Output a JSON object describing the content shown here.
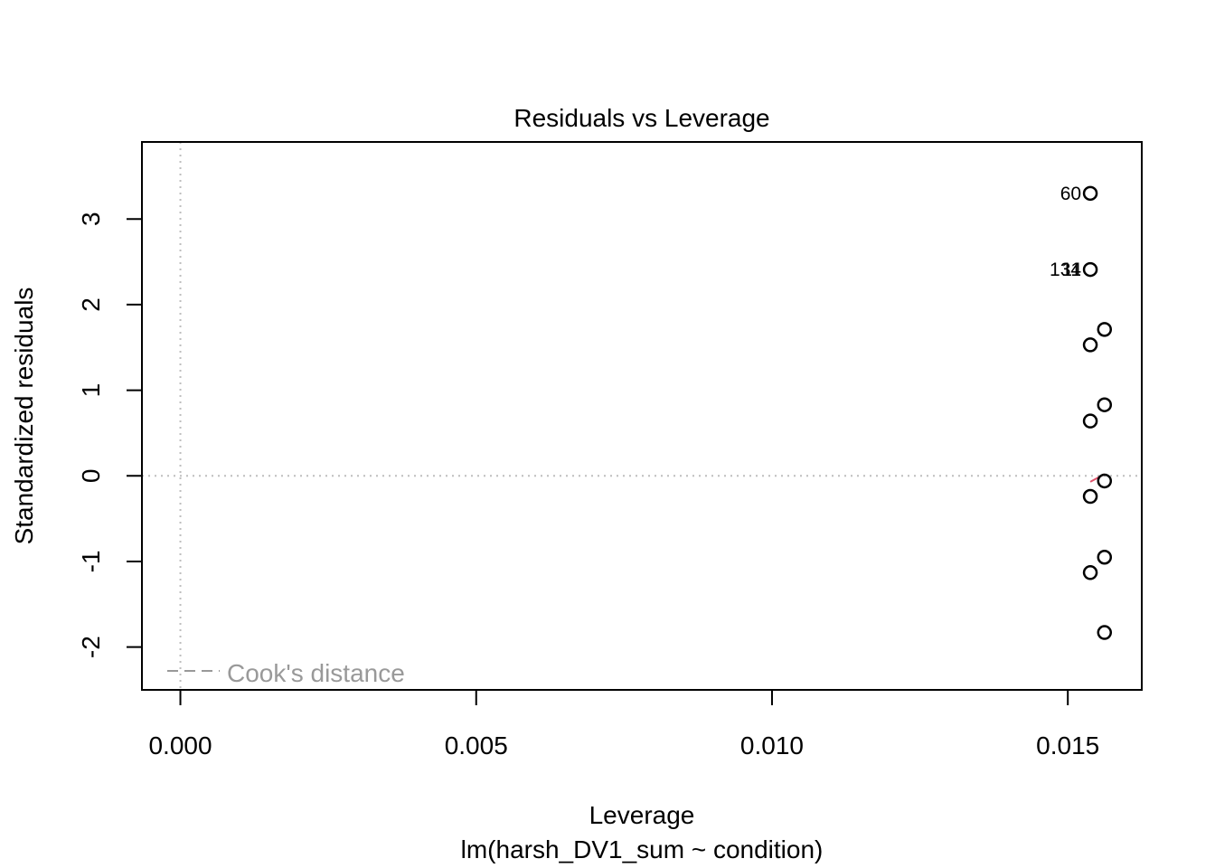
{
  "chart_data": {
    "type": "scatter",
    "title": "Residuals vs Leverage",
    "xlabel": "Leverage",
    "subtitle": "lm(harsh_DV1_sum ~ condition)",
    "ylabel": "Standardized residuals",
    "xlim": [
      -0.00065,
      0.01625
    ],
    "ylim": [
      -2.5,
      3.9
    ],
    "x_ticks": [
      {
        "value": 0.0,
        "label": "0.000"
      },
      {
        "value": 0.005,
        "label": "0.005"
      },
      {
        "value": 0.01,
        "label": "0.010"
      },
      {
        "value": 0.015,
        "label": "0.015"
      }
    ],
    "y_ticks": [
      {
        "value": -2,
        "label": "-2"
      },
      {
        "value": -1,
        "label": "-1"
      },
      {
        "value": 0,
        "label": "0"
      },
      {
        "value": 1,
        "label": "1"
      },
      {
        "value": 2,
        "label": "2"
      },
      {
        "value": 3,
        "label": "3"
      }
    ],
    "points": [
      {
        "x": 0.01538,
        "y": 3.3,
        "label": "60"
      },
      {
        "x": 0.01538,
        "y": 2.41,
        "label": "134"
      },
      {
        "x": 0.01538,
        "y": 2.41,
        "label": "11"
      },
      {
        "x": 0.01562,
        "y": 1.71
      },
      {
        "x": 0.01538,
        "y": 1.53
      },
      {
        "x": 0.01562,
        "y": 0.83
      },
      {
        "x": 0.01538,
        "y": 0.64
      },
      {
        "x": 0.01562,
        "y": -0.06
      },
      {
        "x": 0.01538,
        "y": -0.24
      },
      {
        "x": 0.01562,
        "y": -0.95
      },
      {
        "x": 0.01538,
        "y": -1.13
      },
      {
        "x": 0.01562,
        "y": -1.83
      }
    ],
    "smooth_line": [
      {
        "x": 0.01538,
        "y": -0.07
      },
      {
        "x": 0.01562,
        "y": 0.02
      }
    ],
    "reference_lines": {
      "h": 0,
      "v": 0
    },
    "legend": {
      "label": "Cook's distance",
      "position": "bottom-left"
    },
    "grid": false,
    "colors": {
      "points": "#000000",
      "reference": "#bebebe",
      "legend_text": "#999999",
      "smooth": "#df536b"
    }
  }
}
